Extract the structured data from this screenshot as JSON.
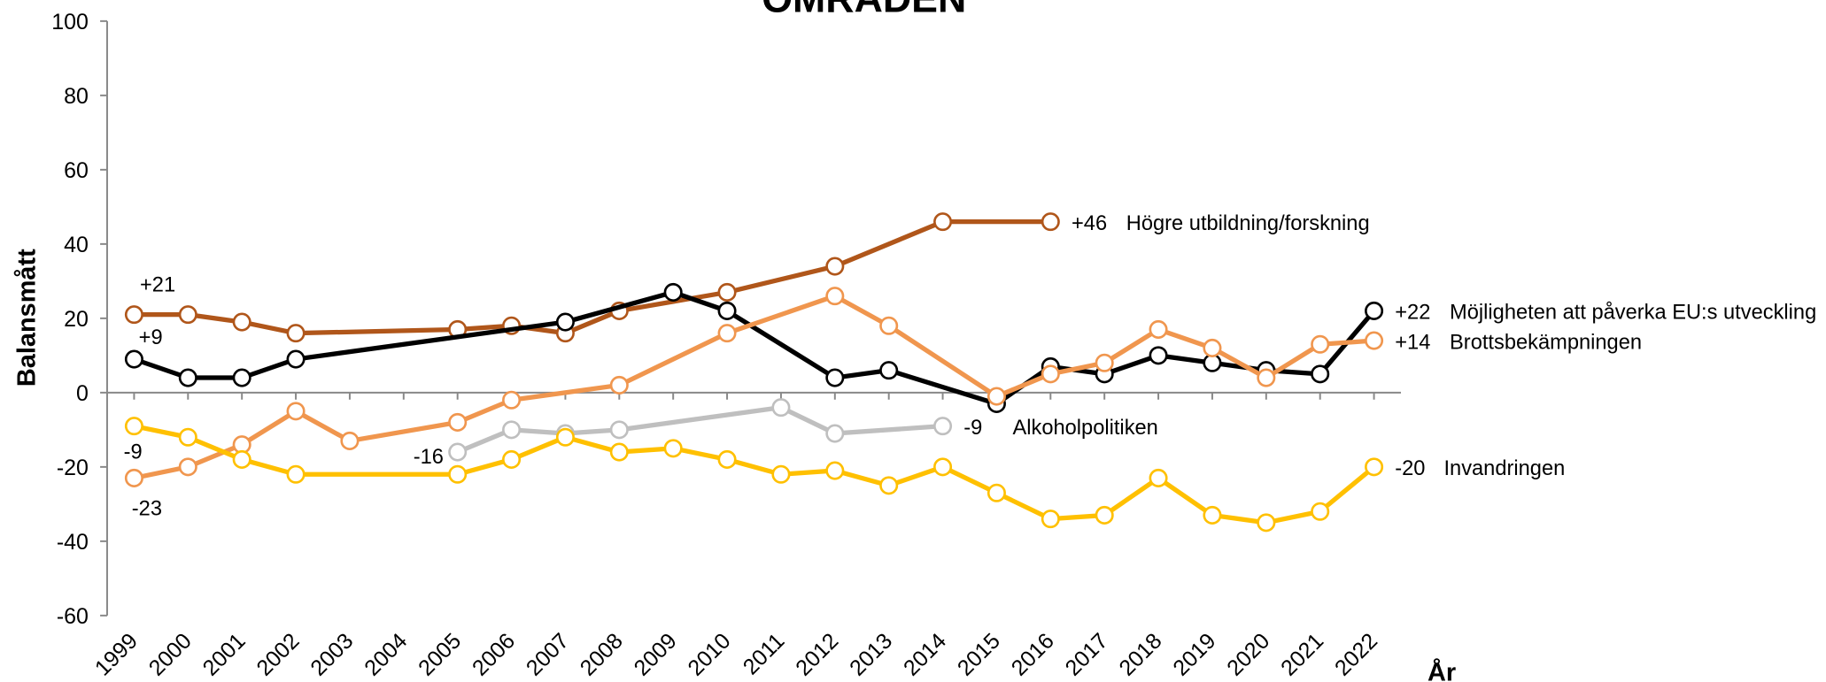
{
  "chart_data": {
    "type": "line",
    "title": "OMRÅDEN",
    "y_label": "Balansmått",
    "x_label": "År",
    "xlim": [
      1998.5,
      2022.5
    ],
    "xticks": [
      1999,
      2000,
      2001,
      2002,
      2003,
      2004,
      2005,
      2006,
      2007,
      2008,
      2009,
      2010,
      2011,
      2012,
      2013,
      2014,
      2015,
      2016,
      2017,
      2018,
      2019,
      2020,
      2021,
      2022
    ],
    "ylim": [
      -60,
      100
    ],
    "yticks": [
      -60,
      -40,
      -20,
      0,
      20,
      40,
      60,
      80,
      100
    ],
    "series": [
      {
        "name": "Högre utbildning/forskning",
        "color": "#B0561A",
        "start_label": "+21",
        "end_label": "+46",
        "x": [
          1999,
          2000,
          2001,
          2002,
          2005,
          2006,
          2007,
          2008,
          2010,
          2012,
          2014,
          2016
        ],
        "values": [
          21,
          21,
          19,
          16,
          17,
          18,
          16,
          22,
          27,
          34,
          46,
          46
        ]
      },
      {
        "name": "Möjligheten att påverka EU:s utveckling",
        "color": "#000000",
        "start_label": "+9",
        "end_label": "+22",
        "x": [
          1999,
          2000,
          2001,
          2002,
          2007,
          2009,
          2010,
          2012,
          2013,
          2015,
          2016,
          2017,
          2018,
          2019,
          2020,
          2021,
          2022
        ],
        "values": [
          9,
          4,
          4,
          9,
          19,
          27,
          22,
          4,
          6,
          -3,
          7,
          5,
          10,
          8,
          6,
          5,
          22
        ]
      },
      {
        "name": "Brottsbekämpningen",
        "color": "#F0964E",
        "start_label": "-23",
        "end_label": "+14",
        "x": [
          1999,
          2000,
          2001,
          2002,
          2003,
          2005,
          2006,
          2008,
          2010,
          2012,
          2013,
          2015,
          2016,
          2017,
          2018,
          2019,
          2020,
          2021,
          2022
        ],
        "values": [
          -23,
          -20,
          -14,
          -5,
          -13,
          -8,
          -2,
          2,
          16,
          26,
          18,
          -1,
          5,
          8,
          17,
          12,
          4,
          13,
          14
        ]
      },
      {
        "name": "Alkoholpolitiken",
        "color": "#BFBFBF",
        "start_label": "-16",
        "end_label": "-9",
        "x": [
          2005,
          2006,
          2007,
          2008,
          2011,
          2012,
          2014
        ],
        "values": [
          -16,
          -10,
          -11,
          -10,
          -4,
          -11,
          -9
        ]
      },
      {
        "name": "Invandringen",
        "color": "#FFC000",
        "start_label": "-9",
        "end_label": "-20",
        "x": [
          1999,
          2000,
          2001,
          2002,
          2005,
          2006,
          2007,
          2008,
          2009,
          2010,
          2011,
          2012,
          2013,
          2014,
          2015,
          2016,
          2017,
          2018,
          2019,
          2020,
          2021,
          2022
        ],
        "values": [
          -9,
          -12,
          -18,
          -22,
          -22,
          -18,
          -12,
          -16,
          -15,
          -18,
          -22,
          -21,
          -25,
          -20,
          -27,
          -34,
          -33,
          -23,
          -33,
          -35,
          -32,
          -20
        ]
      }
    ]
  }
}
